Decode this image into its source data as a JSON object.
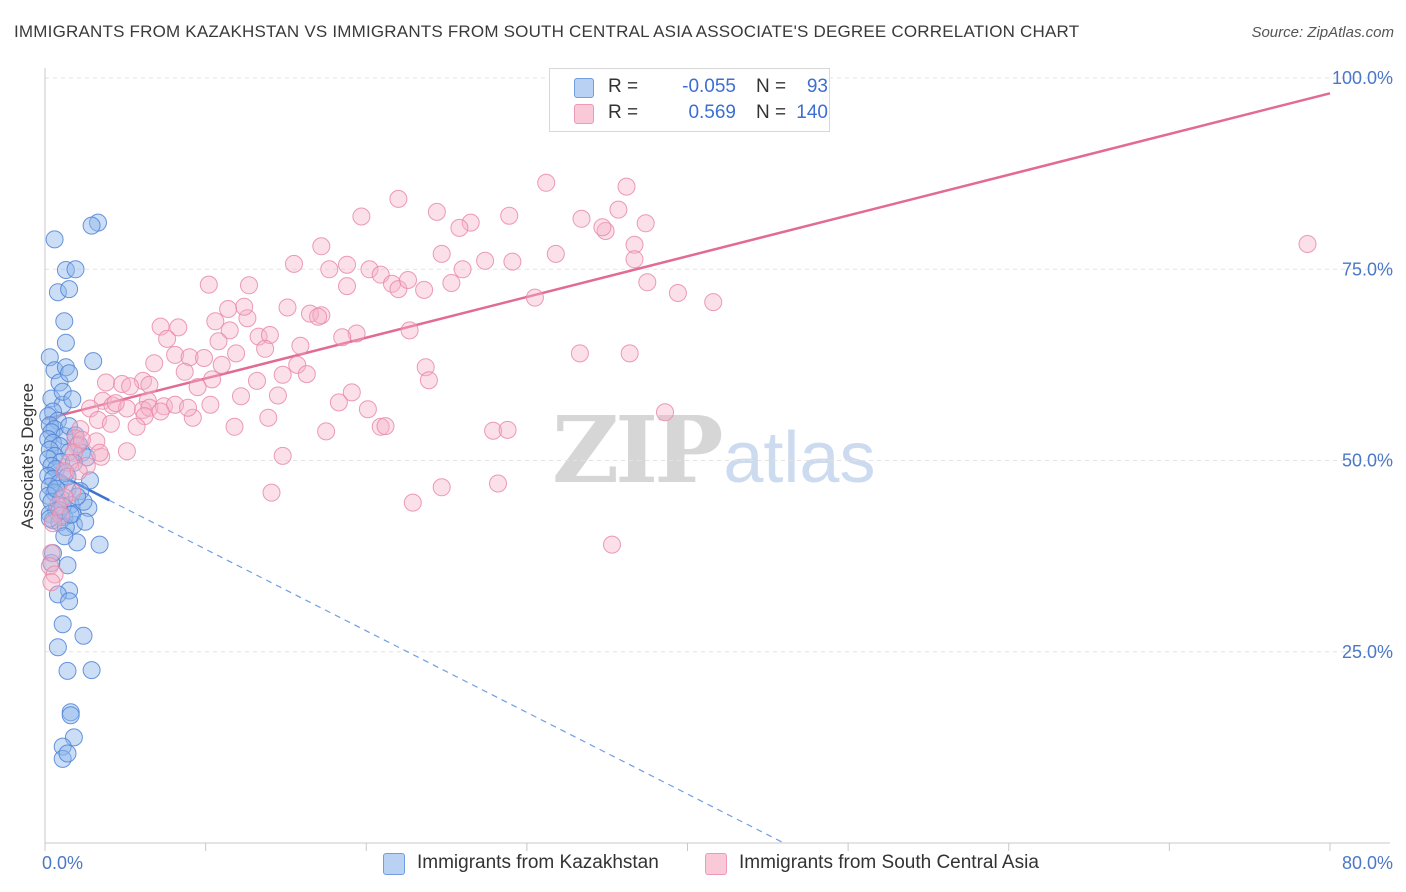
{
  "header": {
    "title": "IMMIGRANTS FROM KAZAKHSTAN VS IMMIGRANTS FROM SOUTH CENTRAL ASIA ASSOCIATE'S DEGREE CORRELATION CHART",
    "source": "Source: ZipAtlas.com"
  },
  "legend": {
    "rows": [
      {
        "r_label": "R =",
        "r_value": "-0.055",
        "n_label": "N =",
        "n_value": "93",
        "color": "#8fb6ec"
      },
      {
        "r_label": "R =",
        "r_value": "0.569",
        "n_label": "N =",
        "n_value": "140",
        "color": "#f2a3bd"
      }
    ]
  },
  "watermark": {
    "zip": "ZIP",
    "atlas": "atlas"
  },
  "chart_data": {
    "type": "scatter",
    "title": "IMMIGRANTS FROM KAZAKHSTAN VS IMMIGRANTS FROM SOUTH CENTRAL ASIA ASSOCIATE'S DEGREE CORRELATION CHART",
    "xlabel": "",
    "ylabel": "Associate's Degree",
    "xlim": [
      0,
      80
    ],
    "ylim": [
      0,
      100
    ],
    "x_tick_labels": [
      "0.0%",
      "80.0%"
    ],
    "y_ticks": [
      25,
      50,
      75,
      100
    ],
    "y_tick_labels": [
      "25.0%",
      "50.0%",
      "75.0%",
      "100.0%"
    ],
    "grid": true,
    "legend_position": "top-center",
    "series": [
      {
        "name": "Immigrants from Kazakhstan",
        "color": "#6f9fe0",
        "stroke": "#4f82d6",
        "trend": {
          "x": [
            0,
            4
          ],
          "y": [
            49.1,
            44.8
          ],
          "extended_to": [
            46,
            0
          ],
          "r": -0.055,
          "n": 93
        },
        "points": [
          [
            0.3,
            63.5
          ],
          [
            0.6,
            61.8
          ],
          [
            0.9,
            60.2
          ],
          [
            0.4,
            58.1
          ],
          [
            1.1,
            57.3
          ],
          [
            0.5,
            56.4
          ],
          [
            0.2,
            55.8
          ],
          [
            0.8,
            55.2
          ],
          [
            0.3,
            54.6
          ],
          [
            0.6,
            54.1
          ],
          [
            0.4,
            53.7
          ],
          [
            1.2,
            53.2
          ],
          [
            0.2,
            52.8
          ],
          [
            0.5,
            52.3
          ],
          [
            0.9,
            51.9
          ],
          [
            0.3,
            51.4
          ],
          [
            1.5,
            51.1
          ],
          [
            0.6,
            50.6
          ],
          [
            0.2,
            50.2
          ],
          [
            1.0,
            49.8
          ],
          [
            0.4,
            49.3
          ],
          [
            0.7,
            48.9
          ],
          [
            1.3,
            48.4
          ],
          [
            0.2,
            48.0
          ],
          [
            0.5,
            47.6
          ],
          [
            2.8,
            47.4
          ],
          [
            0.9,
            47.1
          ],
          [
            0.3,
            46.6
          ],
          [
            1.4,
            46.2
          ],
          [
            0.6,
            45.8
          ],
          [
            0.2,
            45.4
          ],
          [
            1.0,
            45.0
          ],
          [
            0.4,
            44.6
          ],
          [
            1.6,
            44.2
          ],
          [
            2.7,
            43.8
          ],
          [
            0.7,
            43.4
          ],
          [
            0.3,
            43.0
          ],
          [
            1.2,
            42.6
          ],
          [
            0.5,
            42.2
          ],
          [
            0.9,
            41.9
          ],
          [
            1.8,
            41.6
          ],
          [
            1.3,
            41.3
          ],
          [
            0.4,
            36.6
          ],
          [
            3.4,
            39.0
          ],
          [
            2.0,
            39.3
          ],
          [
            0.5,
            37.9
          ],
          [
            1.4,
            36.3
          ],
          [
            1.5,
            33.0
          ],
          [
            0.8,
            32.5
          ],
          [
            1.5,
            31.6
          ],
          [
            1.1,
            28.6
          ],
          [
            2.4,
            27.1
          ],
          [
            0.8,
            25.6
          ],
          [
            1.4,
            22.5
          ],
          [
            2.9,
            22.6
          ],
          [
            1.6,
            17.1
          ],
          [
            1.6,
            16.7
          ],
          [
            1.8,
            13.8
          ],
          [
            1.1,
            12.6
          ],
          [
            1.1,
            11.0
          ],
          [
            1.4,
            11.7
          ],
          [
            0.6,
            78.9
          ],
          [
            1.3,
            74.9
          ],
          [
            1.9,
            75.0
          ],
          [
            0.8,
            72.0
          ],
          [
            1.5,
            72.4
          ],
          [
            1.2,
            68.2
          ],
          [
            1.3,
            65.4
          ],
          [
            1.3,
            62.2
          ],
          [
            1.5,
            61.4
          ],
          [
            1.1,
            59.0
          ],
          [
            1.7,
            58.0
          ],
          [
            3.0,
            63.0
          ],
          [
            1.5,
            54.5
          ],
          [
            1.9,
            53.3
          ],
          [
            2.1,
            52.1
          ],
          [
            2.3,
            51.0
          ],
          [
            2.6,
            50.4
          ],
          [
            1.8,
            49.7
          ],
          [
            2.2,
            46.0
          ],
          [
            2.4,
            44.6
          ],
          [
            1.7,
            43.0
          ],
          [
            3.3,
            81.1
          ],
          [
            2.9,
            80.7
          ],
          [
            1.4,
            47.9
          ],
          [
            2.0,
            45.3
          ],
          [
            1.1,
            44.0
          ],
          [
            0.9,
            43.5
          ],
          [
            1.6,
            42.9
          ],
          [
            2.5,
            42.0
          ],
          [
            1.2,
            40.1
          ],
          [
            0.3,
            42.4
          ],
          [
            0.7,
            46.3
          ]
        ]
      },
      {
        "name": "Immigrants from South Central Asia",
        "color": "#f5b1c8",
        "stroke": "#e98aa9",
        "trend": {
          "x": [
            0,
            80
          ],
          "y": [
            55.4,
            98.0
          ],
          "r": 0.569,
          "n": 140
        },
        "points": [
          [
            31.2,
            86.3
          ],
          [
            36.2,
            85.8
          ],
          [
            22.0,
            84.2
          ],
          [
            24.4,
            82.5
          ],
          [
            35.7,
            82.8
          ],
          [
            28.9,
            82.0
          ],
          [
            19.7,
            81.9
          ],
          [
            33.4,
            81.6
          ],
          [
            37.4,
            81.0
          ],
          [
            26.5,
            81.1
          ],
          [
            34.9,
            80.0
          ],
          [
            25.8,
            80.4
          ],
          [
            17.2,
            78.0
          ],
          [
            36.7,
            78.2
          ],
          [
            24.7,
            77.0
          ],
          [
            31.8,
            77.0
          ],
          [
            36.7,
            76.3
          ],
          [
            29.1,
            76.0
          ],
          [
            15.5,
            75.7
          ],
          [
            17.7,
            75.0
          ],
          [
            18.8,
            75.6
          ],
          [
            20.2,
            75.0
          ],
          [
            26.0,
            75.0
          ],
          [
            20.9,
            74.3
          ],
          [
            21.6,
            73.1
          ],
          [
            18.8,
            72.8
          ],
          [
            22.0,
            72.4
          ],
          [
            23.6,
            72.3
          ],
          [
            25.3,
            73.2
          ],
          [
            10.2,
            73.0
          ],
          [
            12.7,
            72.9
          ],
          [
            30.5,
            71.3
          ],
          [
            39.4,
            71.9
          ],
          [
            41.6,
            70.7
          ],
          [
            16.5,
            69.2
          ],
          [
            17.2,
            69.0
          ],
          [
            10.6,
            68.2
          ],
          [
            12.6,
            68.6
          ],
          [
            7.2,
            67.5
          ],
          [
            8.3,
            67.4
          ],
          [
            11.5,
            67.0
          ],
          [
            22.7,
            67.0
          ],
          [
            19.4,
            66.6
          ],
          [
            13.3,
            66.2
          ],
          [
            14.0,
            66.4
          ],
          [
            7.6,
            65.9
          ],
          [
            10.8,
            65.6
          ],
          [
            15.9,
            65.0
          ],
          [
            13.7,
            64.6
          ],
          [
            11.9,
            64.0
          ],
          [
            8.1,
            63.8
          ],
          [
            9.0,
            63.5
          ],
          [
            33.3,
            64.0
          ],
          [
            36.4,
            64.0
          ],
          [
            6.8,
            62.7
          ],
          [
            15.7,
            62.5
          ],
          [
            23.7,
            62.2
          ],
          [
            8.7,
            61.6
          ],
          [
            16.3,
            61.3
          ],
          [
            10.4,
            60.6
          ],
          [
            13.2,
            60.4
          ],
          [
            23.9,
            60.5
          ],
          [
            3.8,
            60.2
          ],
          [
            4.8,
            60.0
          ],
          [
            6.1,
            60.4
          ],
          [
            5.3,
            59.7
          ],
          [
            6.5,
            59.9
          ],
          [
            9.5,
            59.6
          ],
          [
            12.2,
            58.4
          ],
          [
            14.5,
            58.5
          ],
          [
            19.1,
            58.9
          ],
          [
            3.6,
            57.8
          ],
          [
            4.2,
            57.2
          ],
          [
            6.4,
            57.8
          ],
          [
            18.3,
            57.6
          ],
          [
            2.8,
            56.8
          ],
          [
            5.1,
            56.8
          ],
          [
            6.1,
            56.6
          ],
          [
            6.5,
            56.9
          ],
          [
            7.4,
            57.1
          ],
          [
            8.1,
            57.3
          ],
          [
            6.2,
            55.8
          ],
          [
            7.2,
            56.4
          ],
          [
            9.2,
            55.6
          ],
          [
            20.1,
            56.7
          ],
          [
            38.6,
            56.3
          ],
          [
            13.9,
            55.6
          ],
          [
            3.3,
            55.3
          ],
          [
            4.1,
            54.8
          ],
          [
            11.8,
            54.4
          ],
          [
            20.9,
            54.4
          ],
          [
            21.2,
            54.5
          ],
          [
            2.2,
            54.1
          ],
          [
            17.5,
            53.8
          ],
          [
            27.9,
            53.9
          ],
          [
            28.8,
            54.0
          ],
          [
            1.9,
            52.9
          ],
          [
            3.2,
            52.5
          ],
          [
            2.0,
            51.9
          ],
          [
            5.1,
            51.2
          ],
          [
            1.8,
            51.0
          ],
          [
            3.5,
            50.5
          ],
          [
            14.8,
            50.6
          ],
          [
            1.5,
            49.7
          ],
          [
            2.6,
            49.3
          ],
          [
            1.2,
            48.6
          ],
          [
            28.2,
            47.0
          ],
          [
            24.7,
            46.5
          ],
          [
            1.7,
            45.9
          ],
          [
            1.2,
            45.2
          ],
          [
            14.1,
            45.8
          ],
          [
            0.8,
            44.1
          ],
          [
            22.9,
            44.5
          ],
          [
            1.0,
            42.8
          ],
          [
            0.5,
            41.8
          ],
          [
            35.3,
            39.0
          ],
          [
            0.4,
            37.9
          ],
          [
            0.3,
            36.2
          ],
          [
            0.6,
            35.1
          ],
          [
            0.4,
            34.1
          ],
          [
            78.6,
            78.3
          ],
          [
            37.5,
            73.3
          ],
          [
            34.7,
            80.5
          ],
          [
            27.4,
            76.1
          ],
          [
            22.6,
            73.6
          ],
          [
            12.4,
            70.1
          ],
          [
            11.4,
            69.8
          ],
          [
            15.1,
            70.0
          ],
          [
            17.0,
            68.8
          ],
          [
            18.5,
            66.1
          ],
          [
            9.9,
            63.4
          ],
          [
            11.0,
            62.5
          ],
          [
            14.8,
            61.2
          ],
          [
            4.4,
            57.5
          ],
          [
            10.3,
            57.3
          ],
          [
            8.9,
            56.9
          ],
          [
            5.7,
            54.4
          ],
          [
            2.3,
            52.7
          ],
          [
            3.4,
            51.0
          ],
          [
            2.1,
            48.6
          ]
        ]
      }
    ]
  }
}
